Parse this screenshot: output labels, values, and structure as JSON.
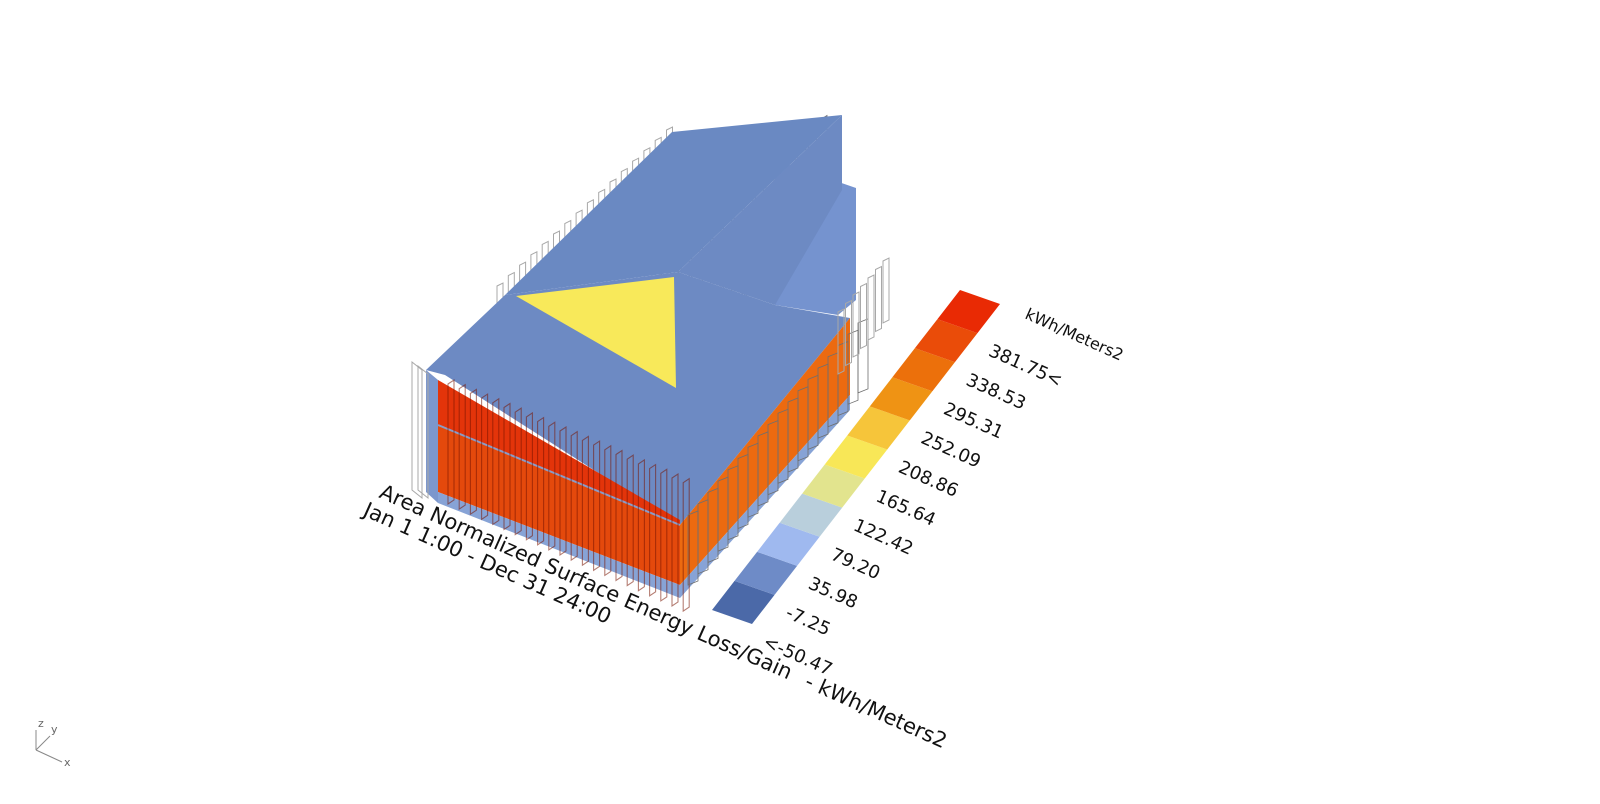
{
  "viewport": {
    "title": "Area Normalized Surface Energy Loss/Gain",
    "unit_suffix": " - kWh/Meters2",
    "period": "Jan 1 1:00 - Dec 31 24:00",
    "legend_unit": "kWh/Meters2",
    "axes": {
      "z": "z",
      "y": "y",
      "x": "x"
    }
  },
  "legend": {
    "labels": [
      "<-50.47",
      "-7.25",
      "35.98",
      "79.20",
      "122.42",
      "165.64",
      "208.86",
      "252.09",
      "295.31",
      "338.53",
      "381.75<"
    ],
    "bins": [
      {
        "min": null,
        "max": -50.47,
        "color": "#4b69a8"
      },
      {
        "min": -50.47,
        "max": -7.25,
        "color": "#6e8bc7"
      },
      {
        "min": -7.25,
        "max": 35.98,
        "color": "#9fb9ef"
      },
      {
        "min": 35.98,
        "max": 79.2,
        "color": "#b9cfdc"
      },
      {
        "min": 79.2,
        "max": 122.42,
        "color": "#e2e48e"
      },
      {
        "min": 122.42,
        "max": 165.64,
        "color": "#f8e757"
      },
      {
        "min": 165.64,
        "max": 208.86,
        "color": "#f6c53a"
      },
      {
        "min": 208.86,
        "max": 252.09,
        "color": "#ef9314"
      },
      {
        "min": 252.09,
        "max": 295.31,
        "color": "#ec700b"
      },
      {
        "min": 295.31,
        "max": 338.53,
        "color": "#ea4c09"
      },
      {
        "min": 338.53,
        "max": null,
        "color": "#e92a04"
      }
    ]
  },
  "model": {
    "surfaces": {
      "roof": "#6d8ac3",
      "roof_upper": "#6a89c2",
      "west_wall_upper": "#e3340a",
      "west_wall_lower": "#e4490c",
      "east_wall": "#ec6a10",
      "north_wall": "#7593cf",
      "skylight": "#f8e95a",
      "base_band": "#87a3d6"
    }
  }
}
